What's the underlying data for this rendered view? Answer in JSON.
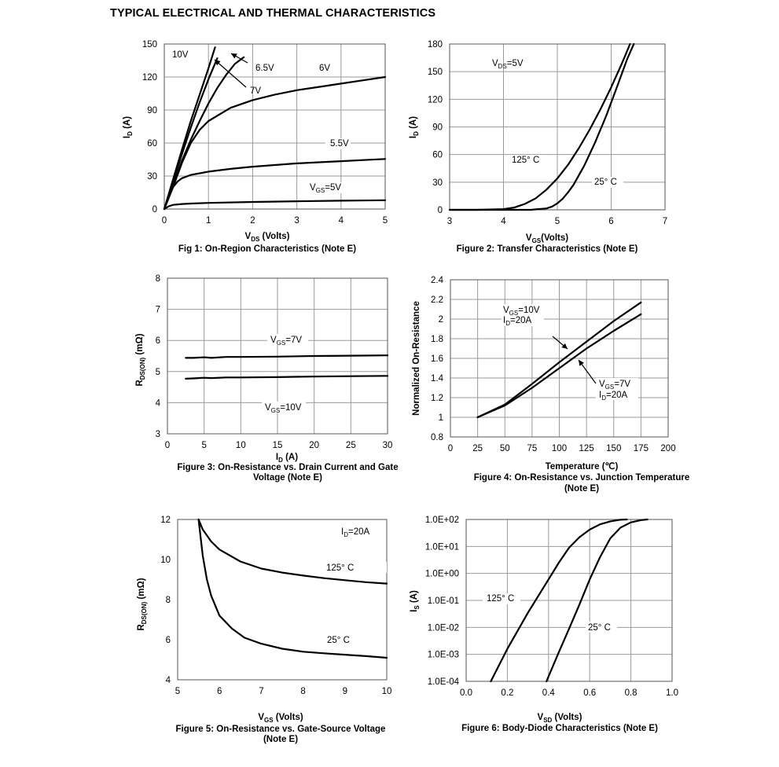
{
  "page": {
    "title": "TYPICAL ELECTRICAL AND THERMAL CHARACTERISTICS"
  },
  "chart_data": [
    {
      "id": "fig1",
      "type": "line",
      "caption": "Fig 1: On-Region Characteristics (Note E)",
      "xlabel": {
        "main": "V",
        "sub": "DS",
        "rest": " (Volts)"
      },
      "ylabel": {
        "main": "I",
        "sub": "D",
        "rest": " (A)"
      },
      "xlim": [
        0,
        5
      ],
      "ylim": [
        0,
        150
      ],
      "xticks": [
        0,
        1,
        2,
        3,
        4,
        5
      ],
      "yticks": [
        0,
        30,
        60,
        90,
        120,
        150
      ],
      "grid": true,
      "series": [
        {
          "name": "10V",
          "x": [
            0,
            0.2,
            0.4,
            0.6,
            0.8,
            1.0,
            1.15
          ],
          "y": [
            0,
            27,
            54,
            80,
            104,
            128,
            147
          ]
        },
        {
          "name": "7V",
          "x": [
            0,
            0.2,
            0.4,
            0.6,
            0.8,
            1.0,
            1.2
          ],
          "y": [
            0,
            25,
            50,
            74,
            97,
            118,
            137
          ]
        },
        {
          "name": "6.5V",
          "x": [
            0,
            0.2,
            0.4,
            0.6,
            0.8,
            1.0,
            1.2,
            1.4,
            1.6,
            1.8
          ],
          "y": [
            0,
            22,
            44,
            63,
            80,
            96,
            110,
            122,
            132,
            138
          ]
        },
        {
          "name": "6V",
          "x": [
            0,
            0.2,
            0.4,
            0.6,
            0.8,
            1.0,
            1.5,
            2.0,
            2.5,
            3.0,
            3.5,
            4.0,
            4.5,
            5.0
          ],
          "y": [
            0,
            20,
            42,
            60,
            72,
            80,
            92,
            99,
            104,
            108,
            111,
            114,
            117,
            120
          ]
        },
        {
          "name": "5.5V",
          "x": [
            0,
            0.1,
            0.2,
            0.3,
            0.4,
            0.6,
            0.8,
            1.0,
            1.5,
            2.0,
            2.5,
            3.0,
            3.5,
            4.0,
            4.5,
            5.0
          ],
          "y": [
            0,
            12,
            20,
            25,
            28,
            31,
            32.5,
            34,
            36.5,
            38.5,
            40,
            41.5,
            42.5,
            43.5,
            44.5,
            45.5
          ]
        },
        {
          "name": "VGS=5V",
          "x": [
            0,
            0.1,
            0.2,
            0.4,
            0.6,
            1.0,
            2.0,
            3.0,
            4.0,
            5.0
          ],
          "y": [
            0,
            2.5,
            3.8,
            4.6,
            5,
            5.6,
            6.4,
            7.1,
            7.6,
            8
          ]
        }
      ],
      "annotations": [
        {
          "text": "10V"
        },
        {
          "text": "6.5V"
        },
        {
          "text": "6V"
        },
        {
          "text": "7V"
        },
        {
          "text": "5.5V"
        },
        {
          "main": "V",
          "sub": "GS",
          "rest": "=5V"
        }
      ]
    },
    {
      "id": "fig2",
      "type": "line",
      "caption": "Figure 2: Transfer Characteristics (Note E)",
      "xlabel": {
        "main": "V",
        "sub": "GS",
        "rest": "(Volts)"
      },
      "ylabel": {
        "main": "I",
        "sub": "D",
        "rest": " (A)"
      },
      "xlim": [
        3,
        7
      ],
      "ylim": [
        0,
        180
      ],
      "xticks": [
        3,
        4,
        5,
        6,
        7
      ],
      "yticks": [
        0,
        30,
        60,
        90,
        120,
        150,
        180
      ],
      "grid": true,
      "series": [
        {
          "name": "125° C",
          "x": [
            3.0,
            3.5,
            4.0,
            4.2,
            4.4,
            4.6,
            4.8,
            5.0,
            5.2,
            5.4,
            5.6,
            5.8,
            6.0,
            6.2,
            6.35
          ],
          "y": [
            0,
            0,
            0.8,
            2.5,
            6.5,
            12.5,
            22,
            34,
            49,
            67,
            87,
            109,
            133,
            159,
            180
          ]
        },
        {
          "name": "25° C",
          "x": [
            3.0,
            4.5,
            4.8,
            4.9,
            5.0,
            5.1,
            5.2,
            5.3,
            5.5,
            5.7,
            5.9,
            6.1,
            6.3,
            6.42
          ],
          "y": [
            0,
            0,
            1.5,
            3.5,
            7,
            12,
            19,
            27,
            48,
            73,
            101,
            132,
            164,
            180
          ]
        }
      ],
      "annotations": [
        {
          "main": "V",
          "sub": "DS",
          "rest": "=5V"
        },
        {
          "text": "125° C"
        },
        {
          "text": "25° C"
        }
      ]
    },
    {
      "id": "fig3",
      "type": "line",
      "caption_lines": [
        "Figure 3: On-Resistance vs. Drain Current and Gate",
        "Voltage (Note E)"
      ],
      "xlabel": {
        "main": "I",
        "sub": "D",
        "rest": " (A)"
      },
      "ylabel": {
        "main": "R",
        "sub": "DS(ON)",
        "rest": " (mΩ)"
      },
      "xlim": [
        0,
        30
      ],
      "ylim": [
        3,
        8
      ],
      "xticks": [
        0,
        5,
        10,
        15,
        20,
        25,
        30
      ],
      "yticks": [
        3,
        4,
        5,
        6,
        7,
        8
      ],
      "grid": true,
      "series": [
        {
          "name": "VGS=7V",
          "x": [
            2.5,
            3.5,
            5,
            6,
            8,
            10,
            15,
            20,
            25,
            30
          ],
          "y": [
            5.44,
            5.44,
            5.46,
            5.44,
            5.47,
            5.47,
            5.48,
            5.5,
            5.51,
            5.52
          ]
        },
        {
          "name": "VGS=10V",
          "x": [
            2.5,
            3.5,
            5,
            6,
            8,
            10,
            15,
            20,
            25,
            30
          ],
          "y": [
            4.77,
            4.78,
            4.8,
            4.79,
            4.81,
            4.81,
            4.82,
            4.84,
            4.85,
            4.86
          ]
        }
      ],
      "annotations": [
        {
          "main": "V",
          "sub": "GS",
          "rest": "=7V"
        },
        {
          "main": "V",
          "sub": "GS",
          "rest": "=10V"
        }
      ]
    },
    {
      "id": "fig4",
      "type": "line",
      "caption_lines": [
        "Figure 4: On-Resistance vs. Junction Temperature",
        "(Note E)"
      ],
      "xlabel": {
        "text": "Temperature (℃)"
      },
      "ylabel": {
        "text": "Normalized On-Resistance"
      },
      "xlim": [
        0,
        200
      ],
      "ylim": [
        0.8,
        2.4
      ],
      "xticks": [
        0,
        25,
        50,
        75,
        100,
        125,
        150,
        175,
        200
      ],
      "yticks": [
        0.8,
        1,
        1.2,
        1.4,
        1.6,
        1.8,
        2,
        2.2,
        2.4
      ],
      "grid": true,
      "series": [
        {
          "name": "VGS=10V, ID=20A",
          "x": [
            25,
            50,
            75,
            100,
            125,
            150,
            175
          ],
          "y": [
            1.0,
            1.13,
            1.34,
            1.56,
            1.77,
            1.98,
            2.17
          ]
        },
        {
          "name": "VGS=7V, ID=20A",
          "x": [
            25,
            50,
            75,
            100,
            125,
            150,
            175
          ],
          "y": [
            1.0,
            1.12,
            1.3,
            1.5,
            1.7,
            1.88,
            2.05
          ]
        }
      ],
      "annotations": [
        {
          "main": "V",
          "sub": "GS",
          "rest": "=10V"
        },
        {
          "main": "I",
          "sub": "D",
          "rest": "=20A"
        },
        {
          "main": "V",
          "sub": "GS",
          "rest": "=7V"
        },
        {
          "main": "I",
          "sub": "D",
          "rest": "=20A"
        }
      ]
    },
    {
      "id": "fig5",
      "type": "line",
      "caption_lines": [
        "Figure 5: On-Resistance vs. Gate-Source Voltage",
        "(Note E)"
      ],
      "xlabel": {
        "main": "V",
        "sub": "GS",
        "rest": " (Volts)"
      },
      "ylabel": {
        "main": "R",
        "sub": "DS(ON)",
        "rest": " (mΩ)"
      },
      "xlim": [
        5,
        10
      ],
      "ylim": [
        4,
        12
      ],
      "xticks": [
        5,
        6,
        7,
        8,
        9,
        10
      ],
      "yticks": [
        4,
        6,
        8,
        10,
        12
      ],
      "grid": false,
      "series": [
        {
          "name": "125° C",
          "x": [
            5.5,
            5.6,
            5.8,
            6.0,
            6.5,
            7.0,
            7.5,
            8.0,
            8.5,
            9.0,
            9.5,
            10.0
          ],
          "y": [
            12.0,
            11.5,
            10.9,
            10.5,
            9.9,
            9.55,
            9.35,
            9.2,
            9.07,
            8.97,
            8.87,
            8.8
          ]
        },
        {
          "name": "25° C",
          "x": [
            5.5,
            5.6,
            5.7,
            5.8,
            6.0,
            6.3,
            6.6,
            7.0,
            7.5,
            8.0,
            8.5,
            9.0,
            9.5,
            10.0
          ],
          "y": [
            12.0,
            10.2,
            9.0,
            8.2,
            7.2,
            6.55,
            6.1,
            5.8,
            5.55,
            5.4,
            5.32,
            5.25,
            5.18,
            5.1
          ]
        }
      ],
      "annotations": [
        {
          "main": "I",
          "sub": "D",
          "rest": "=20A"
        },
        {
          "text": "125° C"
        },
        {
          "text": "25° C"
        }
      ]
    },
    {
      "id": "fig6",
      "type": "line",
      "caption": "Figure 6: Body-Diode Characteristics (Note E)",
      "xlabel": {
        "main": "V",
        "sub": "SD",
        "rest": " (Volts)"
      },
      "ylabel": {
        "main": "I",
        "sub": "S",
        "rest": " (A)"
      },
      "xlim": [
        0.0,
        1.0
      ],
      "ylim_log10": [
        -4,
        2
      ],
      "xticks": [
        0.0,
        0.2,
        0.4,
        0.6,
        0.8,
        1.0
      ],
      "xtick_labels": [
        "0.0",
        "0.2",
        "0.4",
        "0.6",
        "0.8",
        "1.0"
      ],
      "yticks_log10": [
        -4,
        -3,
        -2,
        -1,
        0,
        1,
        2
      ],
      "ytick_labels": [
        "1.0E-04",
        "1.0E-03",
        "1.0E-02",
        "1.0E-01",
        "1.0E+00",
        "1.0E+01",
        "1.0E+02"
      ],
      "yscale": "log",
      "grid": true,
      "series": [
        {
          "name": "125° C",
          "x": [
            0.12,
            0.2,
            0.3,
            0.4,
            0.45,
            0.5,
            0.55,
            0.6,
            0.65,
            0.7,
            0.75,
            0.78
          ],
          "y": [
            0.0001,
            0.0016,
            0.035,
            0.6,
            2.5,
            9,
            22,
            42,
            66,
            85,
            98,
            100
          ]
        },
        {
          "name": "25° C",
          "x": [
            0.39,
            0.45,
            0.5,
            0.55,
            0.6,
            0.65,
            0.7,
            0.75,
            0.8,
            0.85,
            0.88
          ],
          "y": [
            0.0001,
            0.0012,
            0.009,
            0.07,
            0.6,
            4,
            20,
            50,
            78,
            95,
            100
          ]
        }
      ],
      "annotations": [
        {
          "text": "125° C"
        },
        {
          "text": "25° C"
        }
      ]
    }
  ]
}
